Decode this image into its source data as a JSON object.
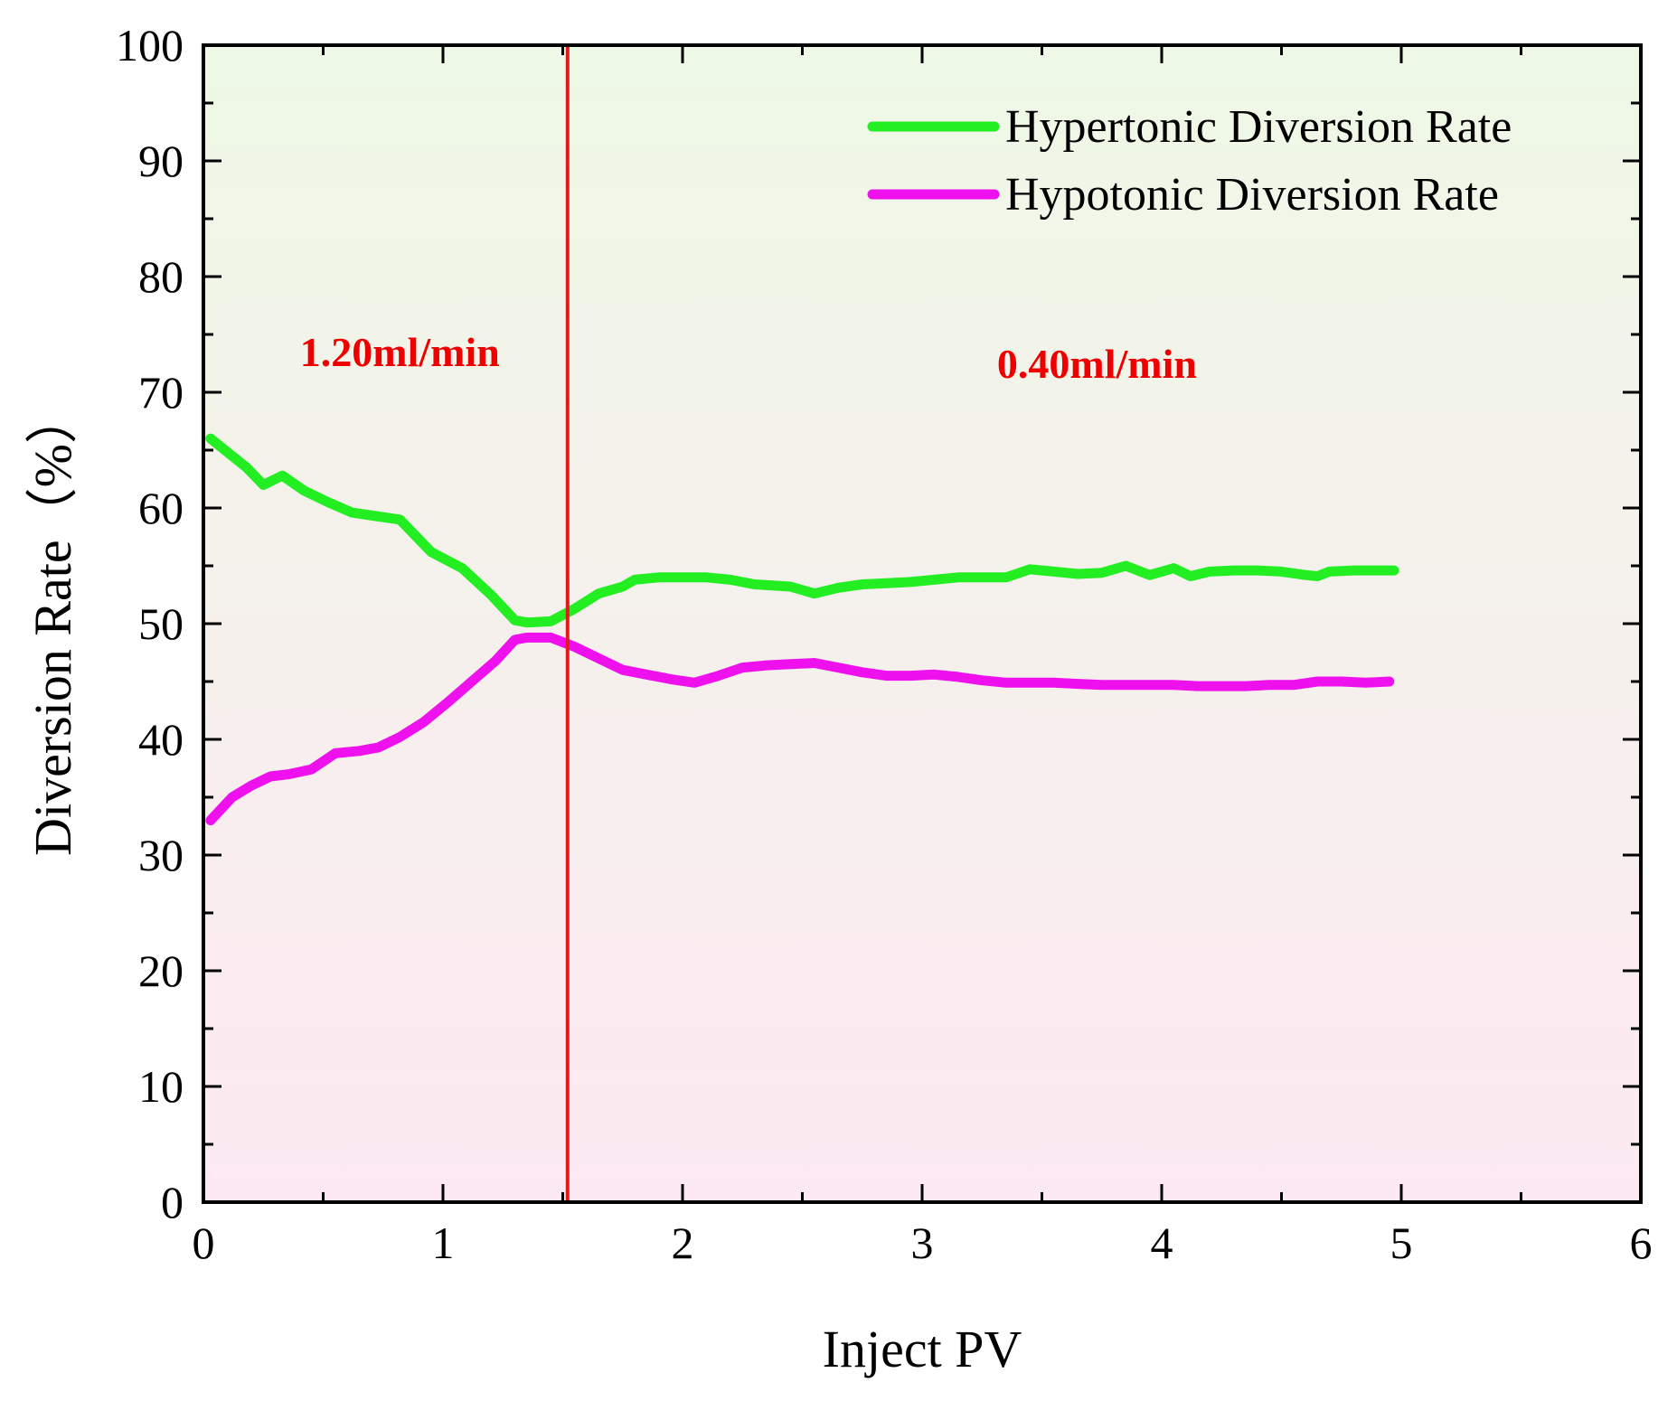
{
  "chart_data": {
    "type": "line",
    "title": "",
    "xlabel": "Inject PV",
    "ylabel": "Diversion Rate（%）",
    "xlim": [
      0,
      6
    ],
    "ylim": [
      0,
      100
    ],
    "xticks": [
      "0",
      "1",
      "2",
      "3",
      "4",
      "5",
      "6"
    ],
    "yticks": [
      "0",
      "10",
      "20",
      "30",
      "40",
      "50",
      "60",
      "70",
      "80",
      "90",
      "100"
    ],
    "legend_position": "top-right",
    "background_gradient": [
      "#eef8e6",
      "#fde9f2"
    ],
    "series": [
      {
        "name": "Hypertonic Diversion Rate",
        "color": "#22ee22",
        "x": [
          0.03,
          0.12,
          0.18,
          0.25,
          0.33,
          0.42,
          0.52,
          0.62,
          0.72,
          0.82,
          0.95,
          1.08,
          1.2,
          1.3,
          1.35,
          1.45,
          1.55,
          1.65,
          1.75,
          1.8,
          1.9,
          2.0,
          2.1,
          2.2,
          2.3,
          2.45,
          2.55,
          2.65,
          2.75,
          2.85,
          2.95,
          3.05,
          3.15,
          3.25,
          3.35,
          3.45,
          3.55,
          3.65,
          3.75,
          3.85,
          3.95,
          4.05,
          4.12,
          4.2,
          4.3,
          4.4,
          4.5,
          4.6,
          4.65,
          4.7,
          4.8,
          4.9,
          4.97
        ],
        "values": [
          66,
          64.5,
          63.5,
          62,
          62.8,
          61.5,
          60.5,
          59.6,
          59.3,
          59,
          56.2,
          54.8,
          52.5,
          50.3,
          50.1,
          50.2,
          51.3,
          52.6,
          53.2,
          53.8,
          54,
          54,
          54,
          53.8,
          53.4,
          53.2,
          52.6,
          53.1,
          53.4,
          53.5,
          53.6,
          53.8,
          54,
          54,
          54,
          54.7,
          54.5,
          54.3,
          54.4,
          55,
          54.2,
          54.8,
          54.1,
          54.5,
          54.6,
          54.6,
          54.5,
          54.2,
          54.1,
          54.5,
          54.6,
          54.6,
          54.6
        ]
      },
      {
        "name": "Hypotonic Diversion Rate",
        "color": "#ee11ee",
        "x": [
          0.03,
          0.12,
          0.2,
          0.28,
          0.36,
          0.45,
          0.55,
          0.65,
          0.73,
          0.82,
          0.92,
          1.02,
          1.12,
          1.22,
          1.3,
          1.35,
          1.45,
          1.55,
          1.65,
          1.75,
          1.85,
          1.95,
          2.05,
          2.15,
          2.25,
          2.35,
          2.45,
          2.55,
          2.65,
          2.75,
          2.85,
          2.95,
          3.05,
          3.15,
          3.25,
          3.35,
          3.45,
          3.55,
          3.65,
          3.75,
          3.85,
          3.95,
          4.05,
          4.15,
          4.25,
          4.35,
          4.45,
          4.55,
          4.65,
          4.75,
          4.85,
          4.95
        ],
        "values": [
          33,
          35,
          36,
          36.8,
          37,
          37.4,
          38.8,
          39,
          39.3,
          40.2,
          41.5,
          43.2,
          45,
          46.8,
          48.6,
          48.8,
          48.8,
          48,
          47,
          46,
          45.6,
          45.2,
          44.9,
          45.5,
          46.2,
          46.4,
          46.5,
          46.6,
          46.2,
          45.8,
          45.5,
          45.5,
          45.6,
          45.4,
          45.1,
          44.9,
          44.9,
          44.9,
          44.8,
          44.7,
          44.7,
          44.7,
          44.7,
          44.6,
          44.6,
          44.6,
          44.7,
          44.7,
          45,
          45,
          44.9,
          45
        ]
      }
    ],
    "vertical_marker": {
      "x": 1.52,
      "color": "#e31a1c"
    },
    "annotations": [
      {
        "text": "1.20ml/min",
        "x": 0.82,
        "y": 73.5,
        "color": "#ee0000"
      },
      {
        "text": "0.40ml/min",
        "x": 3.73,
        "y": 72.5,
        "color": "#ee0000"
      }
    ]
  }
}
